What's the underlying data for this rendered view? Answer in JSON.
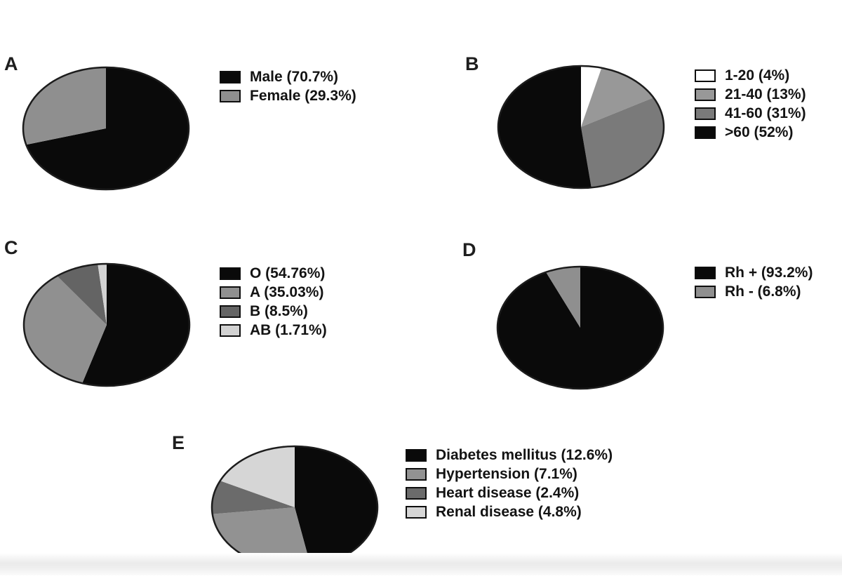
{
  "page": {
    "background": "#ffffff",
    "outline_color": "#1c1c1c"
  },
  "chart_data": [
    {
      "type": "pie",
      "panel": "A",
      "direction": "clockwise",
      "start_angle_deg": 0,
      "legend_position": "right",
      "slices": [
        {
          "category": "Male",
          "label": "Male (70.7%)",
          "value": 70.7,
          "color": "#0a0a0a"
        },
        {
          "category": "Female",
          "label": "Female (29.3%)",
          "value": 29.3,
          "color": "#8f8f8f"
        }
      ]
    },
    {
      "type": "pie",
      "panel": "B",
      "direction": "clockwise",
      "start_angle_deg": 0,
      "legend_position": "right",
      "slices": [
        {
          "category": "1-20",
          "label": "1-20 (4%)",
          "value": 4,
          "color": "#ffffff"
        },
        {
          "category": "21-40",
          "label": "21-40 (13%)",
          "value": 13,
          "color": "#989898"
        },
        {
          "category": "41-60",
          "label": "41-60 (31%)",
          "value": 31,
          "color": "#7a7a7a"
        },
        {
          "category": ">60",
          "label": ">60 (52%)",
          "value": 52,
          "color": "#0a0a0a"
        }
      ]
    },
    {
      "type": "pie",
      "panel": "C",
      "direction": "clockwise",
      "start_angle_deg": 0,
      "legend_position": "right",
      "slices": [
        {
          "category": "O",
          "label": "O (54.76%)",
          "value": 54.76,
          "color": "#0a0a0a"
        },
        {
          "category": "A",
          "label": "A (35.03%)",
          "value": 35.03,
          "color": "#909090"
        },
        {
          "category": "B",
          "label": "B (8.5%)",
          "value": 8.5,
          "color": "#646464"
        },
        {
          "category": "AB",
          "label": "AB (1.71%)",
          "value": 1.71,
          "color": "#d2d2d2"
        }
      ]
    },
    {
      "type": "pie",
      "panel": "D",
      "direction": "clockwise",
      "start_angle_deg": 0,
      "legend_position": "right",
      "slices": [
        {
          "category": "Rh +",
          "label": "Rh + (93.2%)",
          "value": 93.2,
          "color": "#0a0a0a"
        },
        {
          "category": "Rh -",
          "label": "Rh - (6.8%)",
          "value": 6.8,
          "color": "#8f8f8f"
        }
      ]
    },
    {
      "type": "pie",
      "panel": "E",
      "direction": "clockwise",
      "start_angle_deg": 0,
      "legend_position": "right",
      "slices": [
        {
          "category": "Diabetes mellitus",
          "label": "Diabetes mellitus (12.6%)",
          "value": 12.6,
          "color": "#0a0a0a"
        },
        {
          "category": "Hypertension",
          "label": "Hypertension (7.1%)",
          "value": 7.1,
          "color": "#929292"
        },
        {
          "category": "Heart disease",
          "label": "Heart disease (2.4%)",
          "value": 2.4,
          "color": "#6b6b6b"
        },
        {
          "category": "Renal disease",
          "label": "Renal disease (4.8%)",
          "value": 4.8,
          "color": "#d6d6d6"
        }
      ]
    }
  ]
}
